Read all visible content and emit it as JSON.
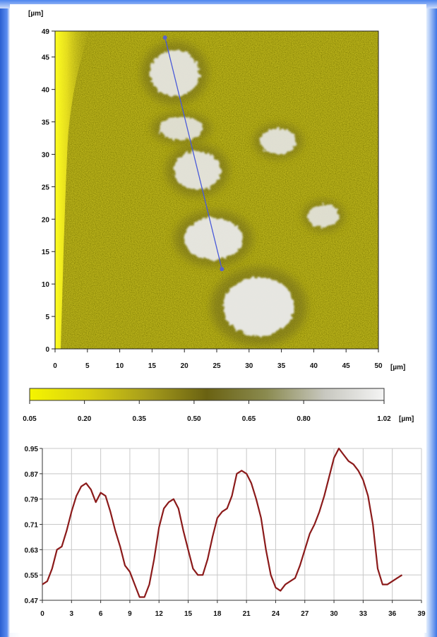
{
  "chart_data": [
    {
      "type": "heatmap",
      "title": "",
      "x_unit": "[µm]",
      "y_unit": "[µm]",
      "xlim": [
        0,
        50
      ],
      "ylim": [
        0,
        49
      ],
      "x_ticks": [
        "0",
        "5",
        "10",
        "15",
        "20",
        "25",
        "30",
        "35",
        "40",
        "45",
        "50"
      ],
      "y_ticks": [
        "0",
        "5",
        "10",
        "15",
        "20",
        "25",
        "30",
        "35",
        "40",
        "45",
        "49"
      ],
      "base_color": "#b9b21a",
      "high_color": "#ececec",
      "features": [
        {
          "x": 18.5,
          "y": 42.5,
          "rx": 3.8,
          "ry": 3.6,
          "level": 0.85
        },
        {
          "x": 19.5,
          "y": 34.0,
          "rx": 3.4,
          "ry": 1.8,
          "level": 0.75
        },
        {
          "x": 22.0,
          "y": 27.5,
          "rx": 3.6,
          "ry": 3.0,
          "level": 0.85
        },
        {
          "x": 24.5,
          "y": 17.0,
          "rx": 4.5,
          "ry": 3.2,
          "level": 0.95
        },
        {
          "x": 31.5,
          "y": 6.5,
          "rx": 5.5,
          "ry": 4.5,
          "level": 1.0
        },
        {
          "x": 34.5,
          "y": 32.0,
          "rx": 2.8,
          "ry": 2.0,
          "level": 0.8
        },
        {
          "x": 41.5,
          "y": 20.5,
          "rx": 2.4,
          "ry": 1.8,
          "level": 0.75
        }
      ],
      "profile_line": {
        "start": [
          17.0,
          48.0
        ],
        "end": [
          25.8,
          12.3
        ]
      }
    },
    {
      "type": "colorbar",
      "unit": "[µm]",
      "tick_labels": [
        "0.05",
        "0.20",
        "0.35",
        "0.50",
        "0.65",
        "0.80",
        "1.02"
      ],
      "tick_values": [
        0.05,
        0.2,
        0.35,
        0.5,
        0.65,
        0.8,
        1.02
      ],
      "range": [
        0.05,
        1.02
      ],
      "colors": [
        "#f5f500",
        "#d8cf10",
        "#a69c1b",
        "#6a6212",
        "#8a8a4f",
        "#c8c8c0",
        "#f4f4f4"
      ]
    },
    {
      "type": "line",
      "title": "",
      "xlabel": "",
      "ylabel": "",
      "xlim": [
        0,
        39
      ],
      "ylim": [
        0.47,
        0.95
      ],
      "x_ticks": [
        "0",
        "3",
        "6",
        "9",
        "12",
        "15",
        "18",
        "21",
        "24",
        "27",
        "30",
        "33",
        "36",
        "39"
      ],
      "y_ticks": [
        "0.47",
        "0.55",
        "0.63",
        "0.71",
        "0.79",
        "0.87",
        "0.95"
      ],
      "grid": true,
      "series": [
        {
          "color": "#8b1a1a",
          "x": [
            0,
            0.5,
            1.0,
            1.5,
            2.0,
            2.5,
            3.0,
            3.5,
            4.0,
            4.5,
            5.0,
            5.5,
            6.0,
            6.5,
            7.0,
            7.5,
            8.0,
            8.5,
            9.0,
            9.5,
            10.0,
            10.5,
            11.0,
            11.5,
            12.0,
            12.5,
            13.0,
            13.5,
            14.0,
            14.5,
            15.0,
            15.5,
            16.0,
            16.5,
            17.0,
            17.5,
            18.0,
            18.5,
            19.0,
            19.5,
            20.0,
            20.5,
            21.0,
            21.5,
            22.0,
            22.5,
            23.0,
            23.5,
            24.0,
            24.5,
            25.0,
            25.5,
            26.0,
            26.5,
            27.0,
            27.5,
            28.0,
            28.5,
            29.0,
            29.5,
            30.0,
            30.5,
            31.0,
            31.5,
            32.0,
            32.5,
            33.0,
            33.5,
            34.0,
            34.5,
            35.0,
            35.5,
            36.0,
            36.5,
            37.0
          ],
          "y": [
            0.52,
            0.53,
            0.57,
            0.63,
            0.64,
            0.69,
            0.75,
            0.8,
            0.83,
            0.84,
            0.82,
            0.78,
            0.81,
            0.8,
            0.75,
            0.69,
            0.64,
            0.58,
            0.56,
            0.52,
            0.48,
            0.48,
            0.52,
            0.6,
            0.7,
            0.76,
            0.78,
            0.79,
            0.76,
            0.69,
            0.63,
            0.57,
            0.55,
            0.55,
            0.6,
            0.67,
            0.73,
            0.75,
            0.76,
            0.8,
            0.87,
            0.88,
            0.87,
            0.84,
            0.79,
            0.73,
            0.63,
            0.55,
            0.51,
            0.5,
            0.52,
            0.53,
            0.54,
            0.58,
            0.63,
            0.68,
            0.71,
            0.75,
            0.8,
            0.86,
            0.92,
            0.95,
            0.93,
            0.91,
            0.9,
            0.88,
            0.85,
            0.8,
            0.71,
            0.57,
            0.52,
            0.52,
            0.53,
            0.54,
            0.55
          ]
        }
      ]
    }
  ]
}
